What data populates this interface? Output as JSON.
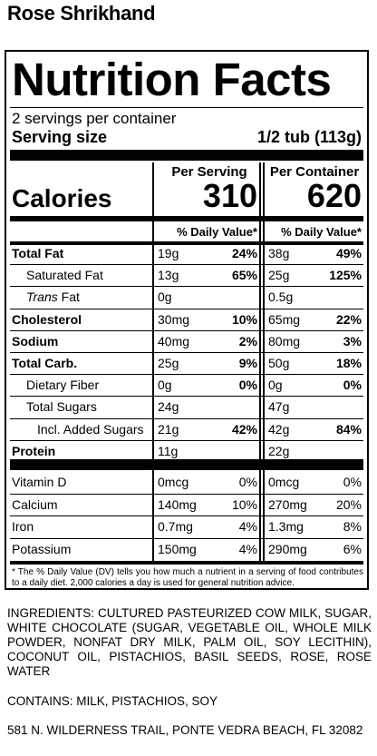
{
  "product_name": "Rose Shrikhand",
  "panel": {
    "title": "Nutrition Facts",
    "servings_per_container": "2 servings per container",
    "serving_size_label": "Serving size",
    "serving_size_value": "1/2 tub (113g)",
    "per_serving_label": "Per Serving",
    "per_container_label": "Per Container",
    "calories_label": "Calories",
    "calories_serving": "310",
    "calories_container": "620",
    "dv_header": "% Daily Value*",
    "nutrients": [
      {
        "label": "Total Fat",
        "s_amt": "19g",
        "s_dv": "24%",
        "c_amt": "38g",
        "c_dv": "49%"
      },
      {
        "label": "Saturated Fat",
        "s_amt": "13g",
        "s_dv": "65%",
        "c_amt": "25g",
        "c_dv": "125%"
      },
      {
        "label_italic": "Trans",
        "label": " Fat",
        "s_amt": "0g",
        "s_dv": "",
        "c_amt": "0.5g",
        "c_dv": ""
      },
      {
        "label": "Cholesterol",
        "s_amt": "30mg",
        "s_dv": "10%",
        "c_amt": "65mg",
        "c_dv": "22%"
      },
      {
        "label": "Sodium",
        "s_amt": "40mg",
        "s_dv": "2%",
        "c_amt": "80mg",
        "c_dv": "3%"
      },
      {
        "label": "Total Carb.",
        "s_amt": "25g",
        "s_dv": "9%",
        "c_amt": "50g",
        "c_dv": "18%"
      },
      {
        "label": "Dietary Fiber",
        "s_amt": "0g",
        "s_dv": "0%",
        "c_amt": "0g",
        "c_dv": "0%"
      },
      {
        "label": "Total Sugars",
        "s_amt": "24g",
        "s_dv": "",
        "c_amt": "47g",
        "c_dv": ""
      },
      {
        "label": "Incl. Added Sugars",
        "s_amt": "21g",
        "s_dv": "42%",
        "c_amt": "42g",
        "c_dv": "84%"
      },
      {
        "label": "Protein",
        "s_amt": "11g",
        "s_dv": "",
        "c_amt": "22g",
        "c_dv": ""
      }
    ],
    "vitamins": [
      {
        "label": "Vitamin D",
        "s_amt": "0mcg",
        "s_dv": "0%",
        "c_amt": "0mcg",
        "c_dv": "0%"
      },
      {
        "label": "Calcium",
        "s_amt": "140mg",
        "s_dv": "10%",
        "c_amt": "270mg",
        "c_dv": "20%"
      },
      {
        "label": "Iron",
        "s_amt": "0.7mg",
        "s_dv": "4%",
        "c_amt": "1.3mg",
        "c_dv": "8%"
      },
      {
        "label": "Potassium",
        "s_amt": "150mg",
        "s_dv": "4%",
        "c_amt": "290mg",
        "c_dv": "6%"
      }
    ],
    "footnote": "* The % Daily Value (DV) tells you how much a nutrient in a serving of food contributes to a daily diet. 2,000 calories a day is used for general nutrition advice."
  },
  "ingredients": "INGREDIENTS: CULTURED PASTEURIZED COW MILK, SUGAR, WHITE CHOCOLATE (SUGAR, VEGETABLE OIL, WHOLE MILK POWDER, NONFAT DRY MILK, PALM OIL, SOY LECITHIN), COCONUT OIL, PISTACHIOS, BASIL SEEDS, ROSE, ROSE WATER",
  "contains": "CONTAINS: MILK, PISTACHIOS, SOY",
  "address": "581 N. WILDERNESS TRAIL, PONTE VEDRA BEACH, FL 32082"
}
